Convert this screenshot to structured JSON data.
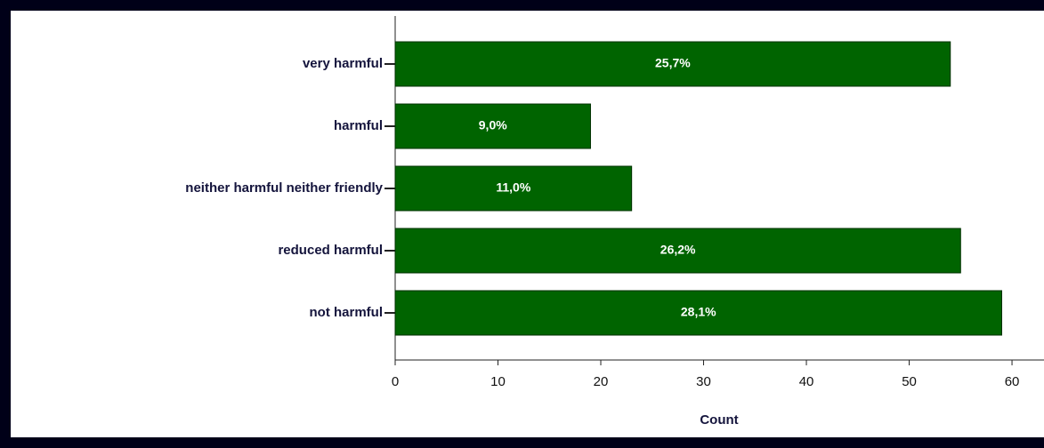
{
  "chart_data": {
    "type": "barh",
    "categories": [
      "very harmful",
      "harmful",
      "neither harmful neither friendly",
      "reduced harmful",
      "not harmful"
    ],
    "values": [
      54,
      19,
      23,
      55,
      59
    ],
    "percentages": [
      25.7,
      9.0,
      11.0,
      26.2,
      28.1
    ],
    "value_labels": [
      "25,7%",
      "9,0%",
      "11,0%",
      "26,2%",
      "28,1%"
    ],
    "color": "#006400",
    "xlabel": "Count",
    "xlim": [
      0,
      63
    ],
    "xticks": [
      0,
      10,
      20,
      30,
      40,
      50,
      60
    ]
  }
}
